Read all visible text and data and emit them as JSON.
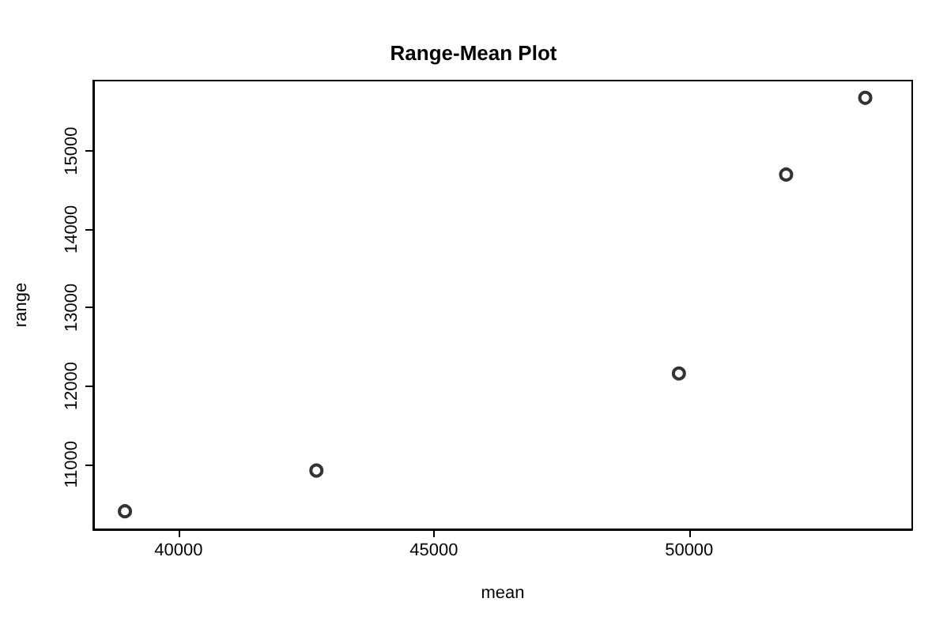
{
  "chart_data": {
    "type": "scatter",
    "title": "Range-Mean Plot",
    "xlabel": "mean",
    "ylabel": "range",
    "x": [
      38950,
      42700,
      49800,
      51900,
      53450
    ],
    "values": [
      10400,
      10920,
      12160,
      14700,
      15680
    ],
    "color": "#000000",
    "marker": "circle",
    "grid": false,
    "xlim": [
      38330,
      54370
    ],
    "xticks": [
      40000,
      45000,
      50000
    ],
    "ylim": [
      10170,
      15900
    ],
    "yticks": [
      11000,
      12000,
      13000,
      14000,
      15000
    ]
  }
}
